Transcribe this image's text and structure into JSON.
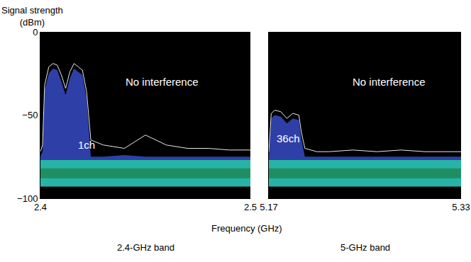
{
  "chart_data": [
    {
      "type": "line",
      "subtitle": "2.4-GHz band",
      "x_label": "Frequency (GHz)",
      "y_label": "Signal strength (dBm)",
      "xlim": [
        2.4,
        2.5
      ],
      "xticks": [
        2.4,
        2.5
      ],
      "ylim": [
        -100,
        0
      ],
      "yticks": [
        0,
        -50,
        -100
      ],
      "grid": false,
      "x": [
        2.4,
        2.401,
        2.402,
        2.404,
        2.406,
        2.408,
        2.41,
        2.412,
        2.414,
        2.416,
        2.418,
        2.42,
        2.422,
        2.424,
        2.43,
        2.44,
        2.45,
        2.46,
        2.47,
        2.48,
        2.49,
        2.5
      ],
      "series": [
        {
          "type": "area",
          "color": "#27b3a6",
          "values": [
            -77,
            -77,
            -77,
            -77,
            -77,
            -77,
            -77,
            -77,
            -77,
            -77,
            -77,
            -77,
            -77,
            -77,
            -77,
            -77,
            -77,
            -77,
            -77,
            -77,
            -77,
            -77
          ],
          "low": [
            -93,
            -93,
            -93,
            -93,
            -93,
            -93,
            -93,
            -93,
            -93,
            -93,
            -93,
            -93,
            -93,
            -93,
            -93,
            -93,
            -93,
            -93,
            -93,
            -93,
            -93,
            -93
          ]
        },
        {
          "type": "area",
          "color": "#1f8f63",
          "values": [
            -82,
            -82,
            -82,
            -82,
            -82,
            -82,
            -82,
            -82,
            -82,
            -82,
            -82,
            -82,
            -82,
            -82,
            -82,
            -82,
            -82,
            -82,
            -82,
            -82,
            -82,
            -82
          ],
          "low": [
            -88,
            -88,
            -88,
            -88,
            -88,
            -88,
            -88,
            -88,
            -88,
            -88,
            -88,
            -88,
            -88,
            -88,
            -88,
            -88,
            -88,
            -88,
            -88,
            -88,
            -88,
            -88
          ]
        },
        {
          "type": "area",
          "color": "#2f3fa8",
          "values": [
            -75,
            -72,
            -35,
            -25,
            -22,
            -23,
            -30,
            -38,
            -28,
            -22,
            -24,
            -26,
            -40,
            -75,
            -75,
            -74,
            -75,
            -75,
            -75,
            -75,
            -75,
            -75
          ],
          "low": [
            -77,
            -77,
            -77,
            -77,
            -77,
            -77,
            -77,
            -77,
            -77,
            -77,
            -77,
            -77,
            -77,
            -77,
            -77,
            -77,
            -77,
            -77,
            -77,
            -77,
            -77,
            -77
          ]
        },
        {
          "type": "line",
          "color": "#e8e8e8",
          "values": [
            -72,
            -68,
            -32,
            -21,
            -19,
            -20,
            -26,
            -34,
            -24,
            -19,
            -21,
            -23,
            -36,
            -65,
            -68,
            -70,
            -62,
            -68,
            -70,
            -70,
            -71,
            -71
          ]
        }
      ],
      "tick_labels": true,
      "annotations": [
        {
          "text": "No interference",
          "x": 2.458,
          "y": -30
        },
        {
          "text": "1ch",
          "x": 2.422,
          "y": -68
        }
      ]
    },
    {
      "type": "line",
      "subtitle": "5-GHz band",
      "xlim": [
        5.17,
        5.33
      ],
      "xticks": [
        5.17,
        5.33
      ],
      "ylim": [
        -100,
        0
      ],
      "yticks": [
        0,
        -50,
        -100
      ],
      "grid": false,
      "x": [
        5.17,
        5.171,
        5.172,
        5.175,
        5.18,
        5.185,
        5.19,
        5.195,
        5.197,
        5.2,
        5.21,
        5.22,
        5.24,
        5.26,
        5.28,
        5.3,
        5.33
      ],
      "series": [
        {
          "type": "area",
          "color": "#27b3a6",
          "values": [
            -77,
            -77,
            -77,
            -77,
            -77,
            -77,
            -77,
            -77,
            -77,
            -77,
            -77,
            -77,
            -77,
            -77,
            -77,
            -77,
            -77
          ],
          "low": [
            -93,
            -93,
            -93,
            -93,
            -93,
            -93,
            -93,
            -93,
            -93,
            -93,
            -93,
            -93,
            -93,
            -93,
            -93,
            -93,
            -93
          ]
        },
        {
          "type": "area",
          "color": "#1f8f63",
          "values": [
            -82,
            -82,
            -82,
            -82,
            -82,
            -82,
            -82,
            -82,
            -82,
            -82,
            -82,
            -82,
            -82,
            -82,
            -82,
            -82,
            -82
          ],
          "low": [
            -88,
            -88,
            -88,
            -88,
            -88,
            -88,
            -88,
            -88,
            -88,
            -88,
            -88,
            -88,
            -88,
            -88,
            -88,
            -88,
            -88
          ]
        },
        {
          "type": "area",
          "color": "#2f3fa8",
          "values": [
            -75,
            -62,
            -52,
            -50,
            -51,
            -55,
            -52,
            -53,
            -64,
            -75,
            -75,
            -75,
            -75,
            -75,
            -75,
            -75,
            -75
          ],
          "low": [
            -77,
            -77,
            -77,
            -77,
            -77,
            -77,
            -77,
            -77,
            -77,
            -77,
            -77,
            -77,
            -77,
            -77,
            -77,
            -77,
            -77
          ]
        },
        {
          "type": "line",
          "color": "#e8e8e8",
          "values": [
            -72,
            -58,
            -49,
            -47,
            -48,
            -52,
            -49,
            -50,
            -60,
            -70,
            -72,
            -72,
            -71,
            -72,
            -71,
            -72,
            -72
          ]
        }
      ],
      "tick_labels": "x",
      "annotations": [
        {
          "text": "No interference",
          "x": 5.27,
          "y": -30
        },
        {
          "text": "36ch",
          "x": 5.186,
          "y": -64
        }
      ]
    }
  ]
}
